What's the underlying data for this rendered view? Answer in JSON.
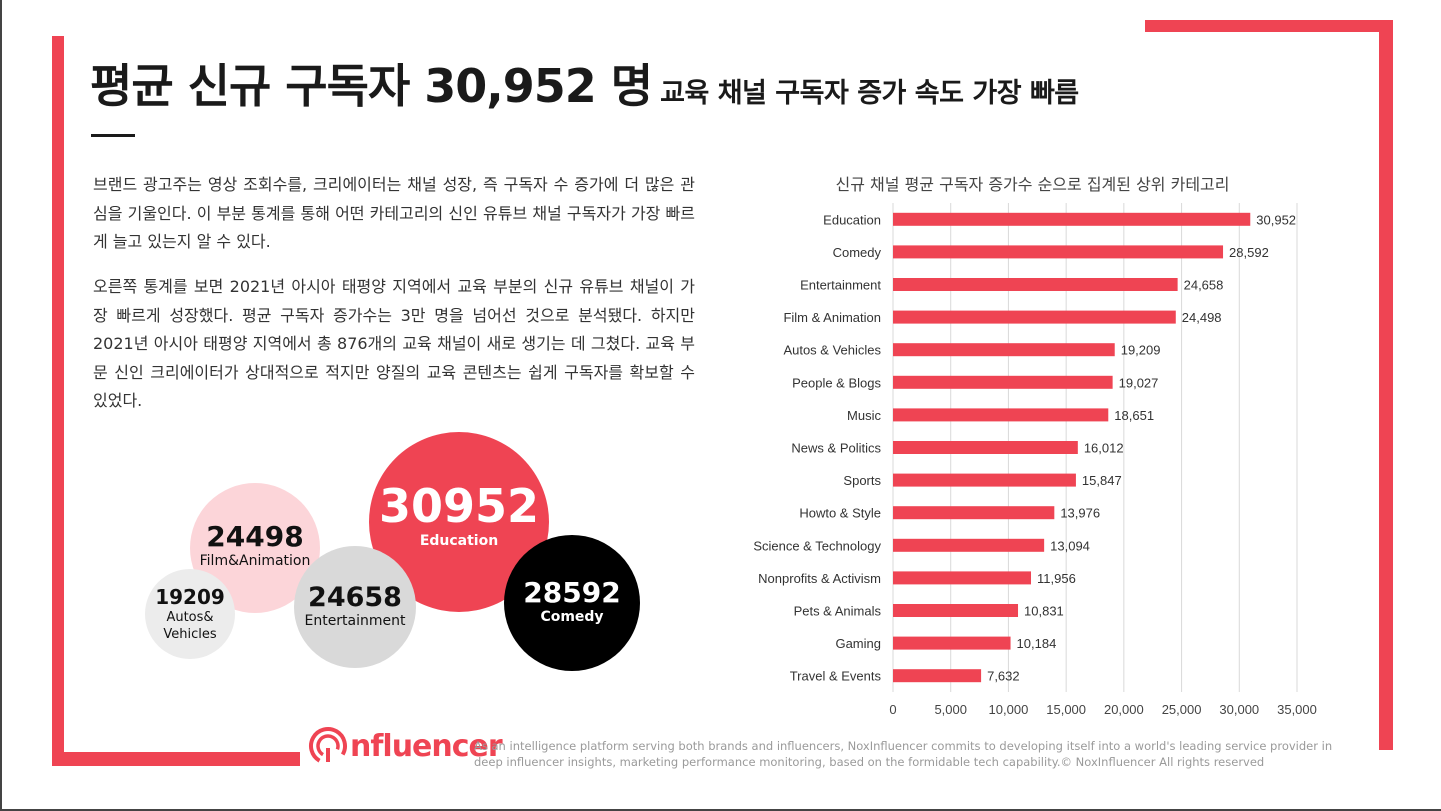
{
  "header": {
    "title": "평균 신규 구독자 30,952 명",
    "subtitle": "교육 채널 구독자 증가 속도 가장 빠름"
  },
  "body": {
    "paragraph1": "브랜드 광고주는 영상 조회수를, 크리에이터는 채널 성장, 즉 구독자 수 증가에 더 많은 관심을 기울인다. 이 부분 통계를 통해 어떤 카테고리의 신인 유튜브 채널 구독자가 가장 빠르게 늘고 있는지 알 수 있다.",
    "paragraph2": "오른쪽 통계를 보면 2021년 아시아 태평양 지역에서 교육 부분의 신규 유튜브 채널이 가장 빠르게 성장했다. 평균 구독자 증가수는 3만 명을 넘어선 것으로 분석됐다. 하지만 2021년 아시아 태평양 지역에서 총 876개의 교육 채널이 새로 생기는 데 그쳤다. 교육 부문 신인 크리에이터가 상대적으로 적지만 양질의 교육 콘텐츠는 쉽게 구독자를 확보할 수 있었다."
  },
  "bubbles": {
    "education": {
      "value": "30952",
      "label": "Education",
      "color": "#ef4453"
    },
    "film": {
      "value": "24498",
      "label": "Film&Animation",
      "color": "#fcd5d9"
    },
    "autos": {
      "value": "19209",
      "label_line1": "Autos&",
      "label_line2": "Vehicles",
      "color": "#ececec"
    },
    "entertainment": {
      "value": "24658",
      "label": "Entertainment",
      "color": "#d9d9d9"
    },
    "comedy": {
      "value": "28592",
      "label": "Comedy",
      "color": "#000000"
    }
  },
  "chart_data": {
    "type": "bar",
    "orientation": "horizontal",
    "title": "신규 채널 평균 구독자 증가수 순으로 집계된 상위 카테고리",
    "categories": [
      "Education",
      "Comedy",
      "Entertainment",
      "Film & Animation",
      "Autos & Vehicles",
      "People & Blogs",
      "Music",
      "News & Politics",
      "Sports",
      "Howto & Style",
      "Science & Technology",
      "Nonprofits & Activism",
      "Pets & Animals",
      "Gaming",
      "Travel & Events"
    ],
    "values": [
      30952,
      28592,
      24658,
      24498,
      19209,
      19027,
      18651,
      16012,
      15847,
      13976,
      13094,
      11956,
      10831,
      10184,
      7632
    ],
    "value_labels": [
      "30,952",
      "28,592",
      "24,658",
      "24,498",
      "19,209",
      "19,027",
      "18,651",
      "16,012",
      "15,847",
      "13,976",
      "13,094",
      "11,956",
      "10,831",
      "10,184",
      "7,632"
    ],
    "xlim": [
      0,
      35000
    ],
    "xticks": [
      0,
      5000,
      10000,
      15000,
      20000,
      25000,
      30000,
      35000
    ],
    "xtick_labels": [
      "0",
      "5,000",
      "10,000",
      "15,000",
      "20,000",
      "25,000",
      "30,000",
      "35,000"
    ],
    "grid": true,
    "bar_color": "#ef4453"
  },
  "footer": {
    "logo_text": "nfluencer",
    "text": "As an intelligence platform serving both brands and influencers, NoxInfluencer commits to developing itself into a world's leading service provider in deep influencer insights, marketing performance monitoring, based on the formidable tech capability.© NoxInfluencer All rights reserved"
  },
  "colors": {
    "accent": "#ef4453",
    "dark": "#1a1a1a"
  }
}
